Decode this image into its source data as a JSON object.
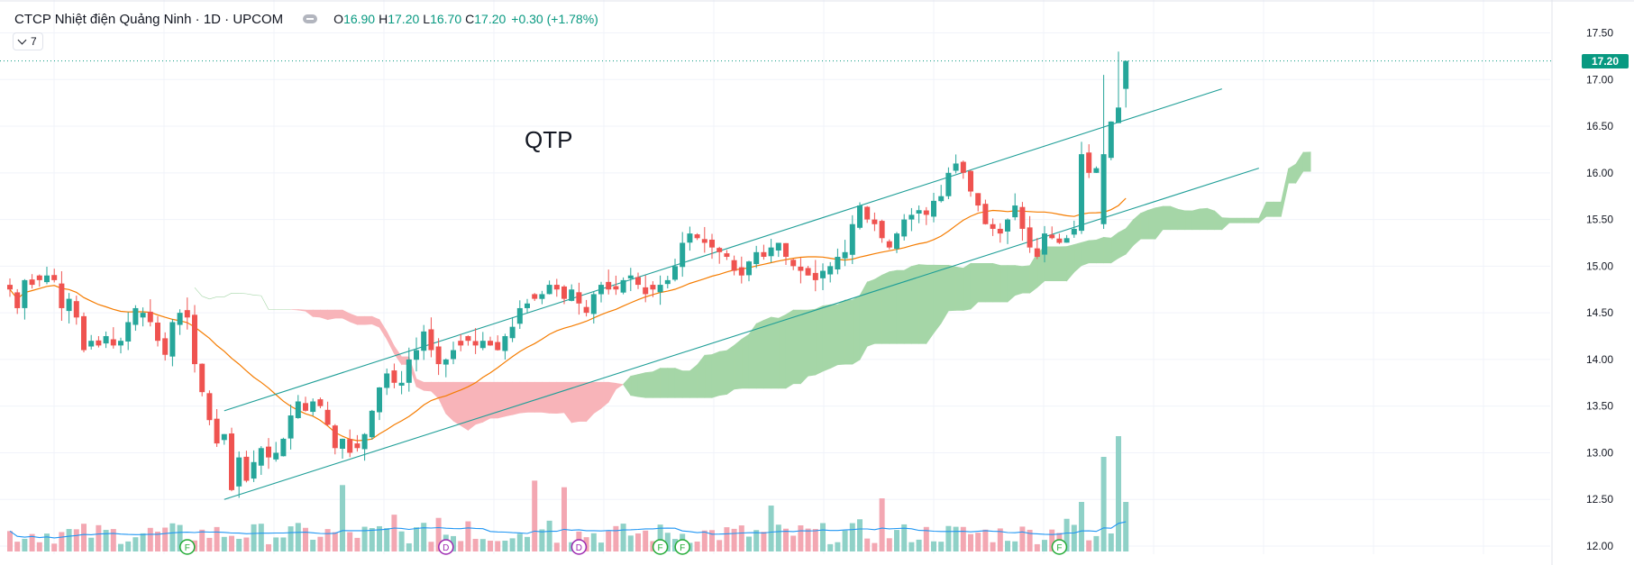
{
  "legend": {
    "title": "CTCP Nhiệt điện Quảng Ninh · 1D · UPCOM",
    "o_label": "O",
    "o": "16.90",
    "h_label": "H",
    "h": "17.20",
    "l_label": "L",
    "l": "16.70",
    "c_label": "C",
    "c": "17.20",
    "change": "+0.30 (+1.78%)",
    "collapsed_count": "7"
  },
  "annotation": "QTP",
  "last_price_tag": "17.20",
  "colors": {
    "up": "#26a69a",
    "down": "#ef5350",
    "vol_up": "#8fd1c7",
    "vol_down": "#f3a7b2",
    "cloud_bull": "#a5d6a7",
    "cloud_bear": "#f8b4b9",
    "ma": "#f57c00",
    "vol_ma": "#2196f3",
    "channel": "#1e9e97",
    "tag": "#089981",
    "event_f": "#22ab35",
    "event_d": "#9c27b0"
  },
  "chart_data": {
    "type": "candlestick",
    "symbol": "QTP",
    "timeframe": "1D",
    "y_axis": {
      "ticks": [
        "17.50",
        "17.00",
        "16.50",
        "16.00",
        "15.50",
        "15.00",
        "14.50",
        "14.00",
        "13.50",
        "13.00",
        "12.50",
        "12.00"
      ],
      "range": [
        11.95,
        17.55
      ],
      "position": "right"
    },
    "last_price": 17.2,
    "close": [
      14.75,
      14.55,
      14.85,
      14.8,
      14.85,
      14.9,
      14.85,
      14.55,
      14.65,
      14.45,
      14.1,
      14.2,
      14.15,
      14.25,
      14.15,
      14.2,
      14.4,
      14.55,
      14.5,
      14.4,
      14.2,
      14.05,
      14.4,
      14.5,
      14.45,
      13.95,
      13.65,
      13.35,
      13.1,
      13.2,
      12.6,
      12.95,
      12.7,
      12.9,
      13.05,
      12.95,
      13.0,
      13.15,
      13.4,
      13.55,
      13.45,
      13.55,
      13.5,
      13.3,
      13.05,
      13.15,
      13.0,
      13.05,
      13.2,
      13.45,
      13.7,
      13.85,
      13.75,
      13.75,
      14.0,
      14.1,
      14.3,
      14.1,
      13.95,
      14.0,
      14.1,
      14.15,
      14.2,
      14.15,
      14.2,
      14.15,
      14.1,
      14.25,
      14.35,
      14.55,
      14.6,
      14.65,
      14.7,
      14.8,
      14.75,
      14.65,
      14.75,
      14.6,
      14.5,
      14.7,
      14.8,
      14.75,
      14.75,
      14.85,
      14.9,
      14.8,
      14.7,
      14.75,
      14.8,
      14.85,
      15.0,
      15.25,
      15.35,
      15.3,
      15.25,
      15.2,
      15.15,
      15.1,
      14.95,
      14.9,
      15.05,
      15.15,
      15.1,
      15.2,
      15.25,
      15.1,
      15.0,
      14.95,
      14.9,
      14.85,
      14.95,
      15.0,
      15.1,
      15.15,
      15.45,
      15.65,
      15.5,
      15.45,
      15.3,
      15.2,
      15.35,
      15.5,
      15.55,
      15.6,
      15.55,
      15.7,
      15.75,
      16.0,
      16.1,
      16.0,
      15.8,
      15.65,
      15.45,
      15.4,
      15.35,
      15.5,
      15.65,
      15.4,
      15.2,
      15.1,
      15.35,
      15.3,
      15.25,
      15.3,
      15.4,
      16.2,
      16.0,
      16.05,
      16.2,
      16.55,
      16.7,
      17.2
    ],
    "ma_period_note": "",
    "channel": {
      "upper": {
        "from": [
          29,
          13.45
        ],
        "to": [
          164,
          16.9
        ]
      },
      "lower": {
        "from": [
          29,
          12.5
        ],
        "to": [
          169,
          16.05
        ]
      }
    },
    "events": [
      {
        "label": "F",
        "index": 24
      },
      {
        "label": "D",
        "index": 59
      },
      {
        "label": "D",
        "index": 77
      },
      {
        "label": "F",
        "index": 88
      },
      {
        "label": "F",
        "index": 91
      },
      {
        "label": "F",
        "index": 142
      }
    ]
  }
}
